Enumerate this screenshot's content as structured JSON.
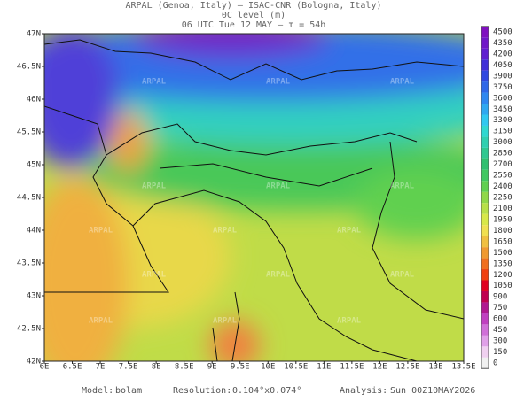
{
  "header": {
    "line1": "ARPAL (Genoa, Italy)  —  ISAC-CNR (Bologna, Italy)",
    "line2": "0C level (m)",
    "line3": "06 UTC Tue 12 MAY  –  τ = 54h"
  },
  "map": {
    "lon_labels": [
      "6E",
      "6.5E",
      "7E",
      "7.5E",
      "8E",
      "8.5E",
      "9E",
      "9.5E",
      "10E",
      "10.5E",
      "11E",
      "11.5E",
      "12E",
      "12.5E",
      "13E",
      "13.5E"
    ],
    "lat_labels": [
      "47N",
      "46.5N",
      "46N",
      "45.5N",
      "45N",
      "44.5N",
      "44N",
      "43.5N",
      "43N",
      "42.5N",
      "42N"
    ],
    "watermark": "ARPAL"
  },
  "colorbar": {
    "levels": [
      0,
      150,
      300,
      450,
      600,
      750,
      900,
      1050,
      1200,
      1350,
      1500,
      1650,
      1800,
      1950,
      2100,
      2250,
      2400,
      2550,
      2700,
      2850,
      3000,
      3150,
      3300,
      3450,
      3600,
      3750,
      3900,
      4050,
      4200,
      4350,
      4500
    ],
    "colors": [
      "#f0f0f0",
      "#f0d0f0",
      "#e0a0e8",
      "#d070d8",
      "#c040c0",
      "#b01890",
      "#c00050",
      "#e00020",
      "#f04010",
      "#f07020",
      "#f09a30",
      "#f0c040",
      "#f0e050",
      "#d8e848",
      "#b8e048",
      "#90d848",
      "#60d050",
      "#40c860",
      "#30c070",
      "#30c890",
      "#30d0b0",
      "#30d8d0",
      "#30c8f0",
      "#30a8f0",
      "#3088f0",
      "#3068e8",
      "#3048e0",
      "#4030d8",
      "#6020d0",
      "#7018c8",
      "#8010c0"
    ]
  },
  "footer": {
    "model_label": "Model:",
    "model": "bolam",
    "resolution_label": "Resolution:",
    "resolution": "0.104°x0.074°",
    "analysis_label": "Analysis:",
    "analysis": "Sun 00Z10MAY2026"
  }
}
